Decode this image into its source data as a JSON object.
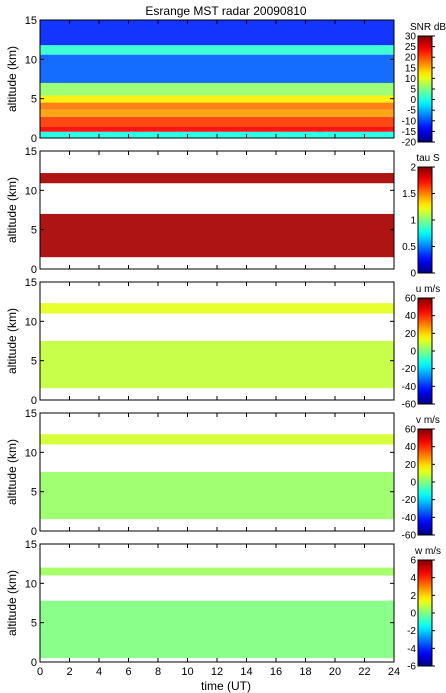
{
  "chart_data": {
    "type": "heatmap",
    "title": "Esrange MST radar 20090810",
    "xlabel": "time (UT)",
    "xlim": [
      0,
      24
    ],
    "xticks": [
      "0",
      "2",
      "4",
      "6",
      "8",
      "10",
      "12",
      "14",
      "16",
      "18",
      "20",
      "22",
      "24"
    ],
    "colormap": "jet",
    "panels": [
      {
        "ylabel": "altitude (km)",
        "ylim": [
          0,
          15
        ],
        "yticks": [
          "0",
          "5",
          "10",
          "15"
        ],
        "colorbar_label": "SNR dB",
        "clim": [
          -20,
          30
        ],
        "colorbar_ticks": [
          "30",
          "25",
          "20",
          "15",
          "10",
          "5",
          "0",
          "-5",
          "-10",
          "-15",
          "-20"
        ],
        "layers": [
          {
            "y": [
              0.0,
              0.8
            ],
            "v": 0
          },
          {
            "y": [
              0.8,
              1.4
            ],
            "v": 24
          },
          {
            "y": [
              1.4,
              2.7
            ],
            "v": 21
          },
          {
            "y": [
              2.7,
              3.6
            ],
            "v": 16
          },
          {
            "y": [
              3.6,
              4.5
            ],
            "v": 18
          },
          {
            "y": [
              4.5,
              5.4
            ],
            "v": 12
          },
          {
            "y": [
              5.4,
              7.0
            ],
            "v": 6
          },
          {
            "y": [
              7.0,
              10.6
            ],
            "v": -9
          },
          {
            "y": [
              10.6,
              11.8
            ],
            "v": 1
          },
          {
            "y": [
              11.8,
              15.0
            ],
            "v": -12
          }
        ]
      },
      {
        "ylabel": "altitude (km)",
        "ylim": [
          0,
          15
        ],
        "yticks": [
          "0",
          "5",
          "10",
          "15"
        ],
        "colorbar_label": "tau S",
        "clim": [
          0,
          2
        ],
        "colorbar_ticks": [
          "2",
          "1.5",
          "1",
          "0.5",
          "0"
        ],
        "layers": [
          {
            "y": [
              1.5,
              7.0
            ],
            "v": 1.92
          },
          {
            "y": [
              10.9,
              12.2
            ],
            "v": 1.92
          }
        ]
      },
      {
        "ylabel": "altitude (km)",
        "ylim": [
          0,
          15
        ],
        "yticks": [
          "0",
          "5",
          "10",
          "15"
        ],
        "colorbar_label": "u m/s",
        "clim": [
          -60,
          60
        ],
        "colorbar_ticks": [
          "60",
          "40",
          "20",
          "0",
          "-20",
          "-40",
          "-60"
        ],
        "layers": [
          {
            "y": [
              1.5,
              7.5
            ],
            "v": 8
          },
          {
            "y": [
              11.0,
              12.3
            ],
            "v": 12
          }
        ]
      },
      {
        "ylabel": "altitude (km)",
        "ylim": [
          0,
          15
        ],
        "yticks": [
          "0",
          "5",
          "10",
          "15"
        ],
        "colorbar_label": "v m/s",
        "clim": [
          -60,
          60
        ],
        "colorbar_ticks": [
          "60",
          "40",
          "20",
          "0",
          "-20",
          "-40",
          "-60"
        ],
        "layers": [
          {
            "y": [
              1.5,
              7.5
            ],
            "v": 3
          },
          {
            "y": [
              11.0,
              12.3
            ],
            "v": 10
          }
        ]
      },
      {
        "ylabel": "altitude (km)",
        "ylim": [
          0,
          15
        ],
        "yticks": [
          "0",
          "5",
          "10",
          "15"
        ],
        "colorbar_label": "w m/s",
        "clim": [
          -6,
          6
        ],
        "colorbar_ticks": [
          "6",
          "4",
          "2",
          "0",
          "-2",
          "-4",
          "-6"
        ],
        "layers": [
          {
            "y": [
              0.5,
              7.8
            ],
            "v": 0
          },
          {
            "y": [
              11.0,
              12.0
            ],
            "v": 0.4
          }
        ]
      }
    ]
  }
}
